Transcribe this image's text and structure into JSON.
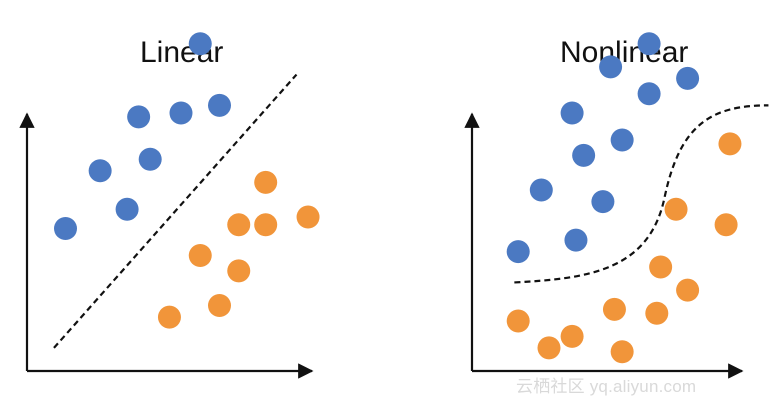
{
  "colors": {
    "class_a": "#4b79c2",
    "class_b": "#f1953a",
    "axis": "#111111",
    "boundary": "#111111"
  },
  "panels": [
    {
      "id": "linear",
      "title": "Linear",
      "boundary_type": "straight-line",
      "points": [
        {
          "x": 1.0,
          "y": 3.7,
          "class": "a"
        },
        {
          "x": 2.6,
          "y": 4.2,
          "class": "a"
        },
        {
          "x": 1.9,
          "y": 5.2,
          "class": "a"
        },
        {
          "x": 3.2,
          "y": 5.5,
          "class": "a"
        },
        {
          "x": 2.9,
          "y": 6.6,
          "class": "a"
        },
        {
          "x": 4.0,
          "y": 6.7,
          "class": "a"
        },
        {
          "x": 5.0,
          "y": 6.9,
          "class": "a"
        },
        {
          "x": 4.5,
          "y": 8.5,
          "class": "a"
        },
        {
          "x": 6.2,
          "y": 4.9,
          "class": "b"
        },
        {
          "x": 5.5,
          "y": 3.8,
          "class": "b"
        },
        {
          "x": 6.2,
          "y": 3.8,
          "class": "b"
        },
        {
          "x": 7.3,
          "y": 4.0,
          "class": "b"
        },
        {
          "x": 4.5,
          "y": 3.0,
          "class": "b"
        },
        {
          "x": 5.5,
          "y": 2.6,
          "class": "b"
        },
        {
          "x": 5.0,
          "y": 1.7,
          "class": "b"
        },
        {
          "x": 3.7,
          "y": 1.4,
          "class": "b"
        }
      ]
    },
    {
      "id": "nonlinear",
      "title": "Nonlinear",
      "boundary_type": "s-curve",
      "points": [
        {
          "x": 1.2,
          "y": 3.1,
          "class": "a"
        },
        {
          "x": 1.8,
          "y": 4.7,
          "class": "a"
        },
        {
          "x": 2.7,
          "y": 3.4,
          "class": "a"
        },
        {
          "x": 3.4,
          "y": 4.4,
          "class": "a"
        },
        {
          "x": 2.9,
          "y": 5.6,
          "class": "a"
        },
        {
          "x": 3.9,
          "y": 6.0,
          "class": "a"
        },
        {
          "x": 2.6,
          "y": 6.7,
          "class": "a"
        },
        {
          "x": 3.6,
          "y": 7.9,
          "class": "a"
        },
        {
          "x": 4.6,
          "y": 8.5,
          "class": "a"
        },
        {
          "x": 4.6,
          "y": 7.2,
          "class": "a"
        },
        {
          "x": 5.6,
          "y": 7.6,
          "class": "a"
        },
        {
          "x": 1.2,
          "y": 1.3,
          "class": "b"
        },
        {
          "x": 2.0,
          "y": 0.6,
          "class": "b"
        },
        {
          "x": 2.6,
          "y": 0.9,
          "class": "b"
        },
        {
          "x": 3.7,
          "y": 1.6,
          "class": "b"
        },
        {
          "x": 3.9,
          "y": 0.5,
          "class": "b"
        },
        {
          "x": 4.8,
          "y": 1.5,
          "class": "b"
        },
        {
          "x": 4.9,
          "y": 2.7,
          "class": "b"
        },
        {
          "x": 5.6,
          "y": 2.1,
          "class": "b"
        },
        {
          "x": 5.3,
          "y": 4.2,
          "class": "b"
        },
        {
          "x": 6.6,
          "y": 3.8,
          "class": "b"
        },
        {
          "x": 6.7,
          "y": 5.9,
          "class": "b"
        }
      ]
    }
  ],
  "watermark": "云栖社区 yq.aliyun.com"
}
